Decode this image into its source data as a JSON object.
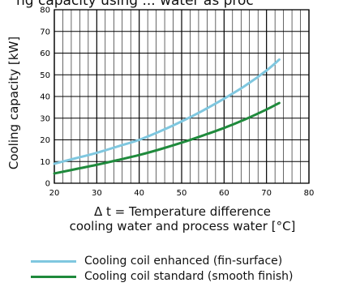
{
  "chart_data": {
    "type": "line",
    "title": "ng capacity using ... water as proc",
    "xlabel_line1": "Δ t = Temperature difference",
    "xlabel_line2": "cooling water and process water [°C]",
    "ylabel": "Cooling capacity [kW]",
    "xlim": [
      20,
      80
    ],
    "ylim": [
      0,
      80
    ],
    "xticks": [
      "20",
      "30",
      "40",
      "50",
      "60",
      "70",
      "80"
    ],
    "yticks": [
      "0",
      "10",
      "20",
      "30",
      "40",
      "50",
      "60",
      "70",
      "80"
    ],
    "grid": true,
    "legend_position": "bottom",
    "series": [
      {
        "name": "Cooling coil enhanced (fin-surface)",
        "color": "#7fc7df",
        "x": [
          20,
          25,
          30,
          35,
          40,
          45,
          50,
          55,
          60,
          65,
          70,
          73
        ],
        "y": [
          9,
          11.5,
          14,
          17,
          20,
          24,
          28.5,
          33.5,
          39,
          45,
          52,
          57
        ]
      },
      {
        "name": "Cooling coil standard (smooth finish)",
        "color": "#1f8a3c",
        "x": [
          20,
          25,
          30,
          35,
          40,
          45,
          50,
          55,
          60,
          65,
          70,
          73
        ],
        "y": [
          4.5,
          6.5,
          8.5,
          10.7,
          13,
          15.7,
          18.7,
          22,
          25.5,
          29.5,
          34,
          37
        ]
      }
    ]
  }
}
